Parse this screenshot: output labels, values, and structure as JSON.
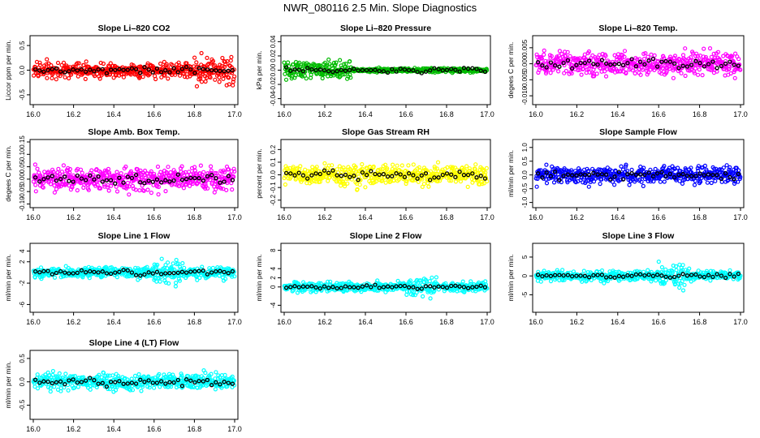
{
  "page": {
    "title": "NWR_080116  2.5 Min. Slope Diagnostics"
  },
  "x_tick_labels": [
    "16.0",
    "16.2",
    "16.4",
    "16.6",
    "16.8",
    "17.0"
  ],
  "chart_data": [
    {
      "type": "scatter",
      "title": "Slope Li–820 CO2",
      "ylabel": "Liccor ppm per min.",
      "color": "#ff0000",
      "xlim": [
        16.0,
        17.0
      ],
      "ylim": [
        -0.65,
        0.65
      ],
      "yticks": [
        -0.5,
        0.0,
        0.5
      ],
      "yticklabels": [
        "-0.5",
        "0.0",
        "0.5"
      ],
      "noise": 0.15,
      "gen": "co2"
    },
    {
      "type": "scatter",
      "title": "Slope Li–820 Pressure",
      "ylabel": "kPa per min.",
      "color": "#00bb00",
      "xlim": [
        16.0,
        17.0
      ],
      "ylim": [
        -0.045,
        0.045
      ],
      "yticks": [
        -0.04,
        -0.02,
        0.0,
        0.02,
        0.04
      ],
      "yticklabels": [
        "-0.04",
        "-0.02",
        "0.00",
        "0.02",
        "0.04"
      ],
      "noise": 0.008,
      "gen": "pressure"
    },
    {
      "type": "scatter",
      "title": "Slope Li–820 Temp.",
      "ylabel": "degees C per min.",
      "color": "#ff00ff",
      "xlim": [
        16.0,
        17.0
      ],
      "ylim": [
        -0.012,
        0.008
      ],
      "yticks": [
        -0.01,
        -0.005,
        0.0,
        0.005
      ],
      "yticklabels": [
        "-0.010",
        "-0.005",
        "0.000",
        "0.005"
      ],
      "noise": 0.0035,
      "gen": "plain"
    },
    {
      "type": "scatter",
      "title": "Slope Amb. Box Temp.",
      "ylabel": "degees C per min.",
      "color": "#ff00ff",
      "xlim": [
        16.0,
        17.0
      ],
      "ylim": [
        -0.105,
        0.15
      ],
      "yticks": [
        -0.1,
        -0.05,
        0.0,
        0.05,
        0.1,
        0.15
      ],
      "yticklabels": [
        "-0.10",
        "-0.05",
        "0.00",
        "0.05",
        "0.10",
        "0.15"
      ],
      "noise": 0.045,
      "gen": "plain"
    },
    {
      "type": "scatter",
      "title": "Slope Gas Stream RH",
      "ylabel": "percent per min.",
      "color": "#ffff00",
      "xlim": [
        16.0,
        17.0
      ],
      "ylim": [
        -0.24,
        0.26
      ],
      "yticks": [
        -0.2,
        -0.1,
        0.0,
        0.1,
        0.2
      ],
      "yticklabels": [
        "-0.2",
        "-0.1",
        "0.0",
        "0.1",
        "0.2"
      ],
      "noise": 0.08,
      "gen": "plain"
    },
    {
      "type": "scatter",
      "title": "Slope Sample Flow",
      "ylabel": "ml/min per min.",
      "color": "#0000ff",
      "xlim": [
        16.0,
        17.0
      ],
      "ylim": [
        -1.1,
        1.2
      ],
      "yticks": [
        -1.0,
        -0.5,
        0.0,
        0.5,
        1.0
      ],
      "yticklabels": [
        "-1.0",
        "-0.5",
        "0.0",
        "0.5",
        "1.0"
      ],
      "noise": 0.3,
      "gen": "plain"
    },
    {
      "type": "scatter",
      "title": "Slope Line 1 Flow",
      "ylabel": "ml/min per min.",
      "color": "#00ffff",
      "xlim": [
        16.0,
        17.0
      ],
      "ylim": [
        -7,
        5
      ],
      "yticks": [
        -6,
        -2,
        2,
        4
      ],
      "yticklabels": [
        "-6",
        "-2",
        "2",
        "4"
      ],
      "noise": 1.0,
      "gen": "line"
    },
    {
      "type": "scatter",
      "title": "Slope Line 2 Flow",
      "ylabel": "ml/min per min.",
      "color": "#00ffff",
      "xlim": [
        16.0,
        17.0
      ],
      "ylim": [
        -5,
        9
      ],
      "yticks": [
        -4,
        0,
        2,
        4,
        8
      ],
      "yticklabels": [
        "-4",
        "0",
        "2",
        "4",
        "8"
      ],
      "noise": 1.0,
      "gen": "line"
    },
    {
      "type": "scatter",
      "title": "Slope Line 3 Flow",
      "ylabel": "ml/min per min.",
      "color": "#00ffff",
      "xlim": [
        16.0,
        17.0
      ],
      "ylim": [
        -9,
        8
      ],
      "yticks": [
        -5,
        0,
        5
      ],
      "yticklabels": [
        "-5",
        "0",
        "5"
      ],
      "noise": 1.3,
      "gen": "line"
    },
    {
      "type": "scatter",
      "title": "Slope Line 4 (LT) Flow",
      "ylabel": "ml/min per min.",
      "color": "#00ffff",
      "xlim": [
        16.0,
        17.0
      ],
      "ylim": [
        -0.75,
        0.62
      ],
      "yticks": [
        -0.5,
        0.0,
        0.5
      ],
      "yticklabels": [
        "-0.5",
        "0.0",
        "0.5"
      ],
      "noise": 0.17,
      "gen": "plain"
    }
  ]
}
